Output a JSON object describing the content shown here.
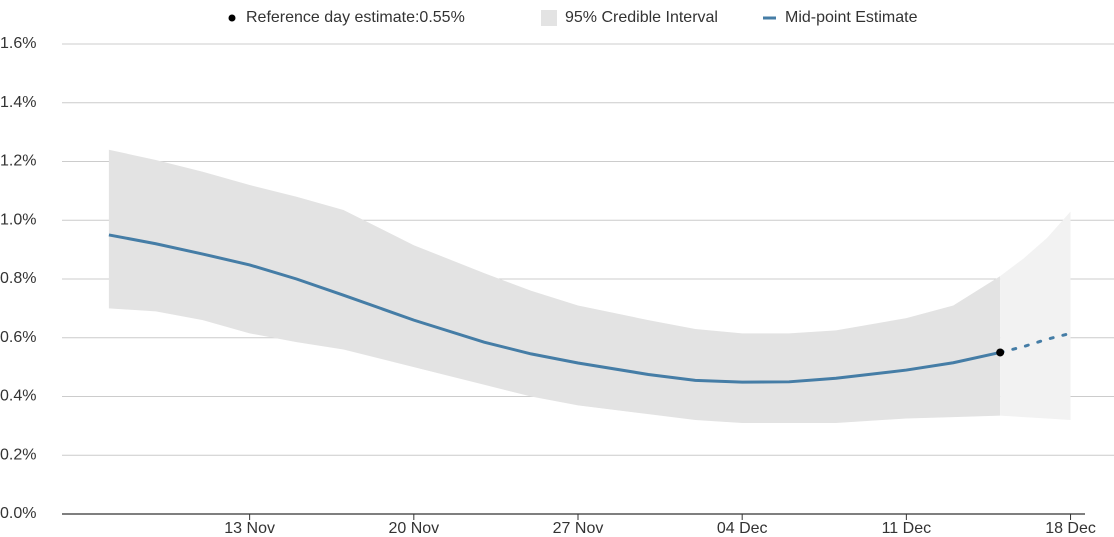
{
  "chart_data": {
    "type": "line",
    "legend_position": "top",
    "reference": {
      "label": "Reference day estimate:0.55%",
      "x": "15 Dec",
      "value": 0.55,
      "color": "#000000"
    },
    "x": [
      "07 Nov",
      "09 Nov",
      "11 Nov",
      "13 Nov",
      "15 Nov",
      "17 Nov",
      "20 Nov",
      "23 Nov",
      "25 Nov",
      "27 Nov",
      "30 Nov",
      "02 Dec",
      "04 Dec",
      "06 Dec",
      "08 Dec",
      "11 Dec",
      "13 Dec",
      "15 Dec",
      "16 Dec",
      "17 Dec",
      "18 Dec"
    ],
    "interval": {
      "name": "95% Credible Interval",
      "color": "#e3e3e3",
      "future_color": "#f2f2f2",
      "upper": [
        1.24,
        1.205,
        1.165,
        1.12,
        1.08,
        1.035,
        0.915,
        0.82,
        0.76,
        0.71,
        0.66,
        0.63,
        0.615,
        0.615,
        0.625,
        0.667,
        0.71,
        0.81,
        0.87,
        0.94,
        1.03
      ],
      "lower": [
        0.7,
        0.69,
        0.66,
        0.615,
        0.585,
        0.56,
        0.5,
        0.44,
        0.4,
        0.37,
        0.34,
        0.32,
        0.31,
        0.31,
        0.31,
        0.325,
        0.33,
        0.335,
        0.33,
        0.325,
        0.32
      ]
    },
    "series": [
      {
        "name": "Mid-point Estimate",
        "color": "#457da6",
        "values": [
          0.95,
          0.92,
          0.885,
          0.848,
          0.8,
          0.745,
          0.66,
          0.585,
          0.545,
          0.514,
          0.475,
          0.455,
          0.449,
          0.45,
          0.462,
          0.49,
          0.515,
          0.55,
          0.57,
          0.595,
          0.615
        ]
      }
    ],
    "xlim": [
      "05 Nov",
      "19 Dec"
    ],
    "xticks": [
      "13 Nov",
      "20 Nov",
      "27 Nov",
      "04 Dec",
      "11 Dec",
      "18 Dec"
    ],
    "ylim": [
      0,
      1.6
    ],
    "yticks": [
      {
        "value": 0,
        "label": "0.0%"
      },
      {
        "value": 0.2,
        "label": "0.2%"
      },
      {
        "value": 0.4,
        "label": "0.4%"
      },
      {
        "value": 0.6,
        "label": "0.6%"
      },
      {
        "value": 0.8,
        "label": "0.8%"
      },
      {
        "value": 1.0,
        "label": "1.0%"
      },
      {
        "value": 1.2,
        "label": "1.2%"
      },
      {
        "value": 1.4,
        "label": "1.4%"
      },
      {
        "value": 1.6,
        "label": "1.6%"
      }
    ],
    "grid": true
  }
}
